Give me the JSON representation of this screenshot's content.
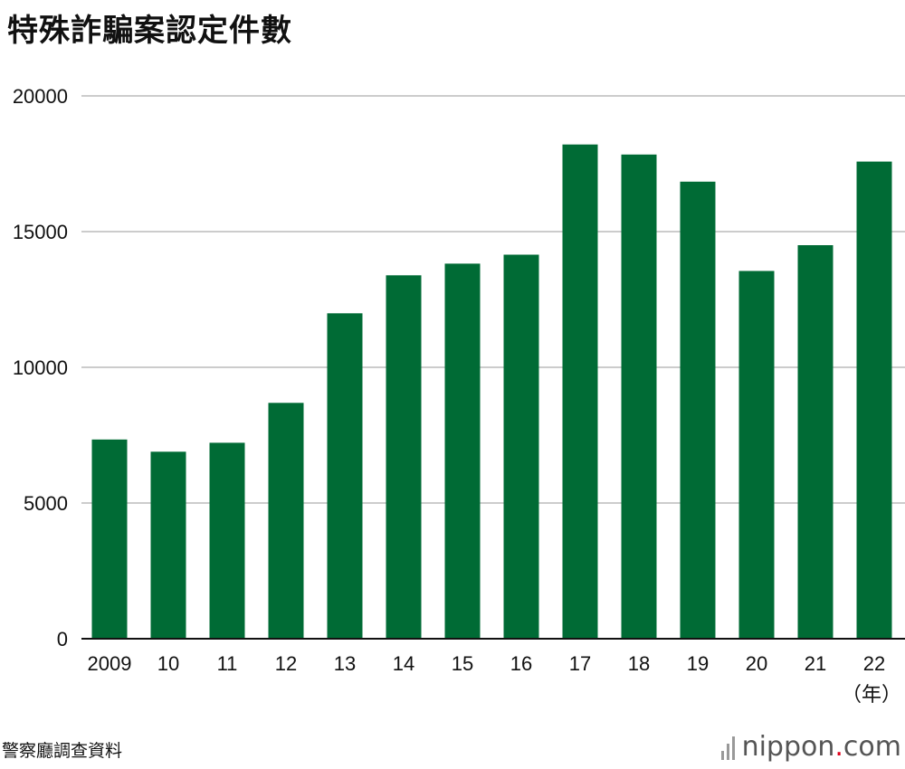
{
  "title": "特殊詐騙案認定件數",
  "source": "警察廳調查資料",
  "brand": {
    "name": "nippon",
    "dot": ".",
    "tld": "com"
  },
  "colors": {
    "bar": "#006b35",
    "grid": "#cccccc",
    "axis": "#111111",
    "brand_dot": "#e0001b"
  },
  "chart_data": {
    "type": "bar",
    "title": "特殊詐騙案認定件數",
    "xlabel": "",
    "ylabel": "",
    "x_unit": "（年）",
    "categories": [
      "2009",
      "10",
      "11",
      "12",
      "13",
      "14",
      "15",
      "16",
      "17",
      "18",
      "19",
      "20",
      "21",
      "22"
    ],
    "values": [
      7340,
      6890,
      7220,
      8690,
      11990,
      13390,
      13820,
      14150,
      18210,
      17840,
      16840,
      13550,
      14500,
      17580
    ],
    "ylim": [
      0,
      20000
    ],
    "yticks": [
      0,
      5000,
      10000,
      15000,
      20000
    ],
    "grid": true,
    "legend": "none"
  }
}
